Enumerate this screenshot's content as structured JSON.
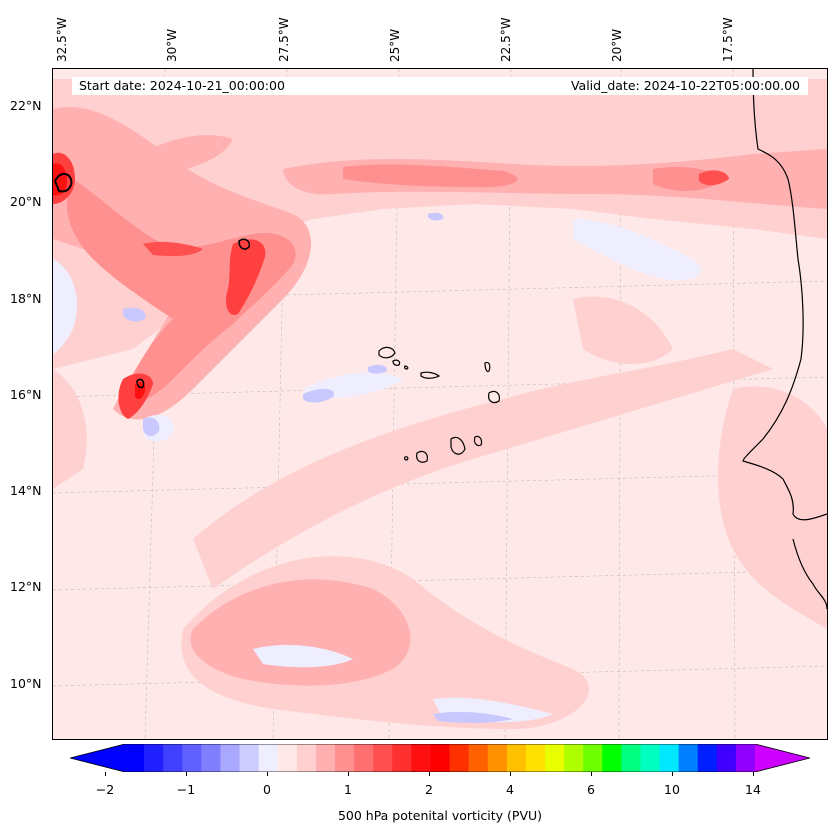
{
  "map": {
    "start_date": "Start date: 2024-10-21_00:00:00",
    "valid_date": "Valid_date: 2024-10-22T05:00:00.00",
    "lon_labels": [
      "32.5°W",
      "30°W",
      "27.5°W",
      "25°W",
      "22.5°W",
      "20°W",
      "17.5°W"
    ],
    "lat_labels": [
      "22°N",
      "20°N",
      "18°N",
      "16°N",
      "14°N",
      "12°N",
      "10°N"
    ],
    "colors": {
      "background": "#ffe8e8",
      "light_pink": "#ffd0d0",
      "pink": "#ffb0b0",
      "salmon": "#ff8888",
      "red": "#ff4040",
      "deep_red": "#ff1010",
      "light_blue": "#eeeeff",
      "blue": "#c0c0ff",
      "coast": "#000000"
    }
  },
  "colorbar": {
    "label": "500 hPa potenital vorticity (PVU)",
    "ticks": [
      "−2",
      "−1",
      "0",
      "1",
      "2",
      "4",
      "6",
      "10",
      "14"
    ],
    "colors": [
      "#0000ff",
      "#2020ff",
      "#4040ff",
      "#6060ff",
      "#8080ff",
      "#a8a8ff",
      "#ccccff",
      "#eeeeff",
      "#ffe8e8",
      "#ffd0d0",
      "#ffb0b0",
      "#ff9090",
      "#ff7070",
      "#ff5050",
      "#ff3030",
      "#ff1010",
      "#ff0000",
      "#ff3000",
      "#ff6000",
      "#ff9000",
      "#ffc000",
      "#ffe000",
      "#e8ff00",
      "#b0ff00",
      "#70ff00",
      "#00ff00",
      "#00ff80",
      "#00ffc0",
      "#00e8ff",
      "#0080ff",
      "#0020ff",
      "#4000ff",
      "#9000ff"
    ],
    "extend_low_color": "#0000ff",
    "extend_high_color": "#cc00ff"
  }
}
